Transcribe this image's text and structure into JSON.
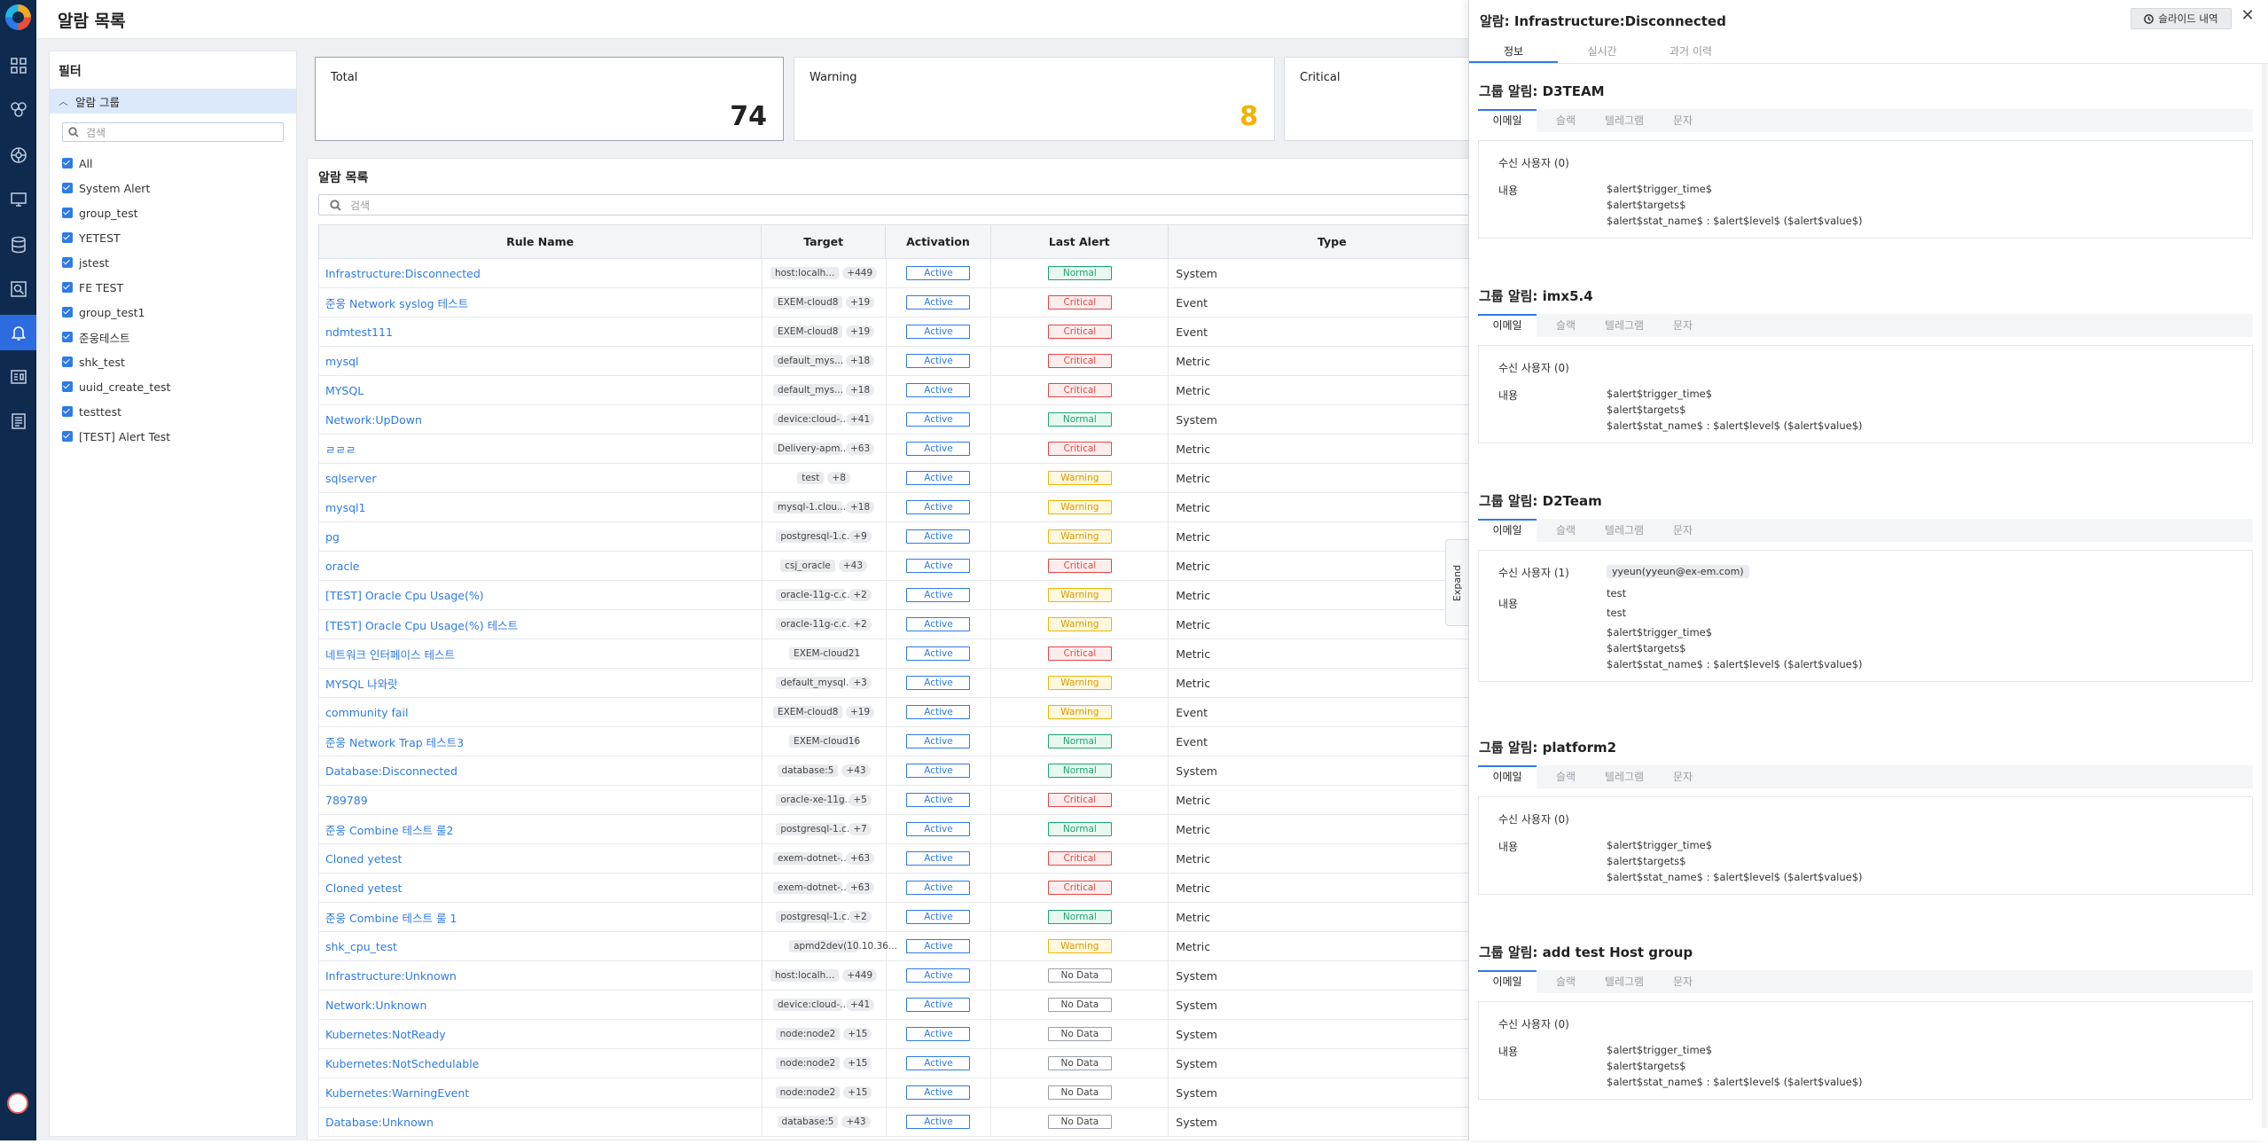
{
  "header": {
    "title": "알람 목록"
  },
  "filter": {
    "title": "필터",
    "group_label": "알람 그룹",
    "search_placeholder": "검색",
    "items": [
      {
        "label": "All"
      },
      {
        "label": "System Alert"
      },
      {
        "label": "group_test"
      },
      {
        "label": "YETEST"
      },
      {
        "label": "jstest"
      },
      {
        "label": "FE TEST"
      },
      {
        "label": "group_test1"
      },
      {
        "label": "준웅테스트"
      },
      {
        "label": "shk_test"
      },
      {
        "label": "uuid_create_test"
      },
      {
        "label": "testtest"
      },
      {
        "label": "[TEST] Alert Test"
      }
    ]
  },
  "summary": {
    "total": {
      "label": "Total",
      "value": "74"
    },
    "warning": {
      "label": "Warning",
      "value": "8"
    },
    "critical": {
      "label": "Critical"
    }
  },
  "list": {
    "title": "알람 목록",
    "search_placeholder": "검색",
    "columns": [
      "Rule Name",
      "Target",
      "Activation",
      "Last Alert",
      "Type"
    ],
    "rows": [
      {
        "name": "Infrastructure:Disconnected",
        "target": "host:localh...",
        "more": "+449",
        "activation": "Active",
        "last": "Normal",
        "type": "System"
      },
      {
        "name": "준웅 Network syslog 테스트",
        "target": "EXEM-cloud8",
        "more": "+19",
        "activation": "Active",
        "last": "Critical",
        "type": "Event"
      },
      {
        "name": "ndmtest111",
        "target": "EXEM-cloud8",
        "more": "+19",
        "activation": "Active",
        "last": "Critical",
        "type": "Event"
      },
      {
        "name": "mysql",
        "target": "default_mys...",
        "more": "+18",
        "activation": "Active",
        "last": "Critical",
        "type": "Metric"
      },
      {
        "name": "MYSQL",
        "target": "default_mys...",
        "more": "+18",
        "activation": "Active",
        "last": "Critical",
        "type": "Metric"
      },
      {
        "name": "Network:UpDown",
        "target": "device:cloud-...",
        "more": "+41",
        "activation": "Active",
        "last": "Normal",
        "type": "System"
      },
      {
        "name": "ㄹㄹㄹ",
        "target": "Delivery-apm...",
        "more": "+63",
        "activation": "Active",
        "last": "Critical",
        "type": "Metric"
      },
      {
        "name": "sqlserver",
        "target": "test",
        "more": "+8",
        "activation": "Active",
        "last": "Warning",
        "type": "Metric"
      },
      {
        "name": "mysql1",
        "target": "mysql-1.clou...",
        "more": "+18",
        "activation": "Active",
        "last": "Warning",
        "type": "Metric"
      },
      {
        "name": "pg",
        "target": "postgresql-1.c...",
        "more": "+9",
        "activation": "Active",
        "last": "Warning",
        "type": "Metric"
      },
      {
        "name": "oracle",
        "target": "csj_oracle",
        "more": "+43",
        "activation": "Active",
        "last": "Critical",
        "type": "Metric"
      },
      {
        "name": "[TEST] Oracle Cpu Usage(%)",
        "target": "oracle-11g-c.c...",
        "more": "+2",
        "activation": "Active",
        "last": "Warning",
        "type": "Metric"
      },
      {
        "name": "[TEST] Oracle Cpu Usage(%) 테스트",
        "target": "oracle-11g-c.c...",
        "more": "+2",
        "activation": "Active",
        "last": "Warning",
        "type": "Metric"
      },
      {
        "name": "네트워크 인터페이스 테스트",
        "target": "EXEM-cloud21",
        "more": "",
        "activation": "Active",
        "last": "Critical",
        "type": "Metric"
      },
      {
        "name": "MYSQL 나와랏",
        "target": "default_mysql...",
        "more": "+3",
        "activation": "Active",
        "last": "Warning",
        "type": "Metric"
      },
      {
        "name": "community fail",
        "target": "EXEM-cloud8",
        "more": "+19",
        "activation": "Active",
        "last": "Warning",
        "type": "Event"
      },
      {
        "name": "준웅 Network Trap 테스트3",
        "target": "EXEM-cloud16",
        "more": "",
        "activation": "Active",
        "last": "Normal",
        "type": "Event"
      },
      {
        "name": "Database:Disconnected",
        "target": "database:5",
        "more": "+43",
        "activation": "Active",
        "last": "Normal",
        "type": "System"
      },
      {
        "name": "789789",
        "target": "oracle-xe-11g...",
        "more": "+5",
        "activation": "Active",
        "last": "Critical",
        "type": "Metric"
      },
      {
        "name": "준웅 Combine 테스트 룰2",
        "target": "postgresql-1.c...",
        "more": "+7",
        "activation": "Active",
        "last": "Normal",
        "type": "Metric"
      },
      {
        "name": "Cloned yetest",
        "target": "exem-dotnet-...",
        "more": "+63",
        "activation": "Active",
        "last": "Critical",
        "type": "Metric"
      },
      {
        "name": "Cloned yetest",
        "target": "exem-dotnet-...",
        "more": "+63",
        "activation": "Active",
        "last": "Critical",
        "type": "Metric"
      },
      {
        "name": "준웅 Combine 테스트 룰 1",
        "target": "postgresql-1.c...",
        "more": "+2",
        "activation": "Active",
        "last": "Normal",
        "type": "Metric"
      },
      {
        "name": "shk_cpu_test",
        "target": "apmd2dev(10.10.36...",
        "more": "",
        "activation": "Active",
        "last": "Warning",
        "type": "Metric"
      },
      {
        "name": "Infrastructure:Unknown",
        "target": "host:localh...",
        "more": "+449",
        "activation": "Active",
        "last": "No Data",
        "type": "System"
      },
      {
        "name": "Network:Unknown",
        "target": "device:cloud-...",
        "more": "+41",
        "activation": "Active",
        "last": "No Data",
        "type": "System"
      },
      {
        "name": "Kubernetes:NotReady",
        "target": "node:node2",
        "more": "+15",
        "activation": "Active",
        "last": "No Data",
        "type": "System"
      },
      {
        "name": "Kubernetes:NotSchedulable",
        "target": "node:node2",
        "more": "+15",
        "activation": "Active",
        "last": "No Data",
        "type": "System"
      },
      {
        "name": "Kubernetes:WarningEvent",
        "target": "node:node2",
        "more": "+15",
        "activation": "Active",
        "last": "No Data",
        "type": "System"
      },
      {
        "name": "Database:Unknown",
        "target": "database:5",
        "more": "+43",
        "activation": "Active",
        "last": "No Data",
        "type": "System"
      }
    ]
  },
  "expand_label": "Expand",
  "panel": {
    "title": "알람: Infrastructure:Disconnected",
    "history_button": "슬라이드 내역",
    "tabs": [
      "정보",
      "실시간",
      "과거 이력"
    ],
    "channel_tabs": [
      "이메일",
      "슬랙",
      "텔레그램",
      "문자"
    ],
    "recipients_label_prefix": "수신 사용자",
    "content_label": "내용",
    "groups": [
      {
        "title": "그룹 알림: D3TEAM",
        "recipients": "수신 사용자 (0)",
        "users": [],
        "extra": [],
        "lines": [
          "$alert$trigger_time$",
          "$alert$targets$",
          "$alert$stat_name$ : $alert$level$ ($alert$value$)"
        ]
      },
      {
        "title": "그룹 알림: imx5.4",
        "recipients": "수신 사용자 (0)",
        "users": [],
        "extra": [],
        "lines": [
          "$alert$trigger_time$",
          "$alert$targets$",
          "$alert$stat_name$ : $alert$level$ ($alert$value$)"
        ]
      },
      {
        "title": "그룹 알림: D2Team",
        "recipients": "수신 사용자 (1)",
        "users": [
          "yyeun(yyeun@ex-em.com)"
        ],
        "extra": [
          "test",
          "test"
        ],
        "lines": [
          "$alert$trigger_time$",
          "$alert$targets$",
          "$alert$stat_name$ : $alert$level$ ($alert$value$)"
        ]
      },
      {
        "title": "그룹 알림: platform2",
        "recipients": "수신 사용자 (0)",
        "users": [],
        "extra": [],
        "lines": [
          "$alert$trigger_time$",
          "$alert$targets$",
          "$alert$stat_name$ : $alert$level$ ($alert$value$)"
        ]
      },
      {
        "title": "그룹 알림: add test Host group",
        "recipients": "수신 사용자 (0)",
        "users": [],
        "extra": [],
        "lines": [
          "$alert$trigger_time$",
          "$alert$targets$",
          "$alert$stat_name$ : $alert$level$ ($alert$value$)"
        ]
      }
    ]
  },
  "rail_icons": [
    "dashboard-icon",
    "topology-icon",
    "kubernetes-icon",
    "monitor-icon",
    "database-icon",
    "analysis-icon",
    "alarm-bell-icon",
    "report-icon",
    "document-icon"
  ],
  "colors": {
    "accent": "#2f7be6",
    "rail": "#0e2a4e",
    "normal": "#1ca66f",
    "critical": "#e64545",
    "warning": "#f0b400"
  }
}
